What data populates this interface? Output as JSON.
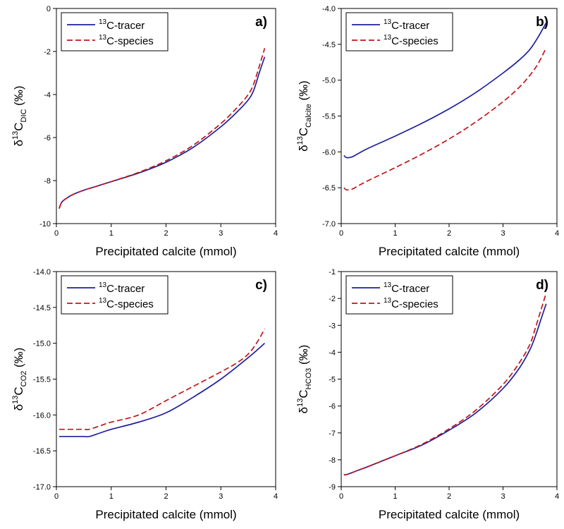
{
  "colors": {
    "tracer": "#1f1f9e",
    "species": "#c0161c"
  },
  "chart_data": [
    {
      "type": "line",
      "panel_label": "a)",
      "xlabel": "Precipitated calcite (mmol)",
      "ylabel": {
        "prefix": "δ",
        "sup": "13",
        "main": "C",
        "sub": "DIC",
        "suffix": "(‰)"
      },
      "xlim": [
        0,
        4
      ],
      "ylim": [
        -10,
        0
      ],
      "xticks": [
        0,
        1,
        2,
        3,
        4
      ],
      "yticks": [
        -10,
        -8,
        -6,
        -4,
        -2,
        0
      ],
      "legend": "top-left",
      "series": [
        {
          "name": "C-tracer",
          "name_sup": "13",
          "style": "solid",
          "x": [
            0.05,
            0.1,
            0.2,
            0.3,
            0.5,
            0.75,
            1.0,
            1.5,
            2.0,
            2.5,
            3.0,
            3.3,
            3.5,
            3.6,
            3.7,
            3.8
          ],
          "y": [
            -9.3,
            -9.0,
            -8.8,
            -8.65,
            -8.45,
            -8.25,
            -8.05,
            -7.65,
            -7.15,
            -6.45,
            -5.5,
            -4.8,
            -4.25,
            -3.8,
            -3.0,
            -2.25
          ]
        },
        {
          "name": "C-species",
          "name_sup": "13",
          "style": "dashed",
          "x": [
            0.05,
            0.1,
            0.2,
            0.3,
            0.5,
            0.75,
            1.0,
            1.5,
            2.0,
            2.5,
            3.0,
            3.3,
            3.5,
            3.6,
            3.7,
            3.8
          ],
          "y": [
            -9.3,
            -9.0,
            -8.8,
            -8.65,
            -8.45,
            -8.25,
            -8.05,
            -7.62,
            -7.08,
            -6.35,
            -5.35,
            -4.6,
            -4.0,
            -3.5,
            -2.7,
            -1.85
          ]
        }
      ]
    },
    {
      "type": "line",
      "panel_label": "b)",
      "xlabel": "Precipitated calcite (mmol)",
      "ylabel": {
        "prefix": "δ",
        "sup": "13",
        "main": "C",
        "sub": "Calcite",
        "suffix": "(‰)"
      },
      "xlim": [
        0,
        4
      ],
      "ylim": [
        -7.0,
        -4.0
      ],
      "xticks": [
        0,
        1,
        2,
        3,
        4
      ],
      "yticks": [
        -7.0,
        -6.5,
        -6.0,
        -5.5,
        -5.0,
        -4.5,
        -4.0
      ],
      "ytick_labels": [
        "-7.0",
        "-6.5",
        "-6.0",
        "-5.5",
        "-5.0",
        "-4.5",
        "-4.0"
      ],
      "legend": "top-left",
      "series": [
        {
          "name": "C-tracer",
          "name_sup": "13",
          "style": "solid",
          "x": [
            0.05,
            0.1,
            0.2,
            0.3,
            0.5,
            1.0,
            1.5,
            2.0,
            2.5,
            3.0,
            3.3,
            3.5,
            3.65,
            3.8
          ],
          "y": [
            -6.05,
            -6.08,
            -6.07,
            -6.03,
            -5.95,
            -5.78,
            -5.6,
            -5.4,
            -5.17,
            -4.9,
            -4.72,
            -4.57,
            -4.4,
            -4.2
          ]
        },
        {
          "name": "C-species",
          "name_sup": "13",
          "style": "dashed",
          "x": [
            0.05,
            0.1,
            0.2,
            0.3,
            0.5,
            1.0,
            1.5,
            2.0,
            2.5,
            3.0,
            3.3,
            3.5,
            3.65,
            3.8
          ],
          "y": [
            -6.5,
            -6.53,
            -6.52,
            -6.48,
            -6.4,
            -6.22,
            -6.03,
            -5.82,
            -5.58,
            -5.3,
            -5.1,
            -4.93,
            -4.77,
            -4.55
          ]
        }
      ]
    },
    {
      "type": "line",
      "panel_label": "c)",
      "xlabel": "Precipitated calcite (mmol)",
      "ylabel": {
        "prefix": "δ",
        "sup": "13",
        "main": "C",
        "sub": "CO2",
        "suffix": "(‰)"
      },
      "xlim": [
        0,
        4
      ],
      "ylim": [
        -17.0,
        -14.0
      ],
      "xticks": [
        0,
        1,
        2,
        3,
        4
      ],
      "yticks": [
        -17.0,
        -16.5,
        -16.0,
        -15.5,
        -15.0,
        -14.5,
        -14.0
      ],
      "ytick_labels": [
        "-17.0",
        "-16.5",
        "-16.0",
        "-15.5",
        "-15.0",
        "-14.5",
        "-14.0"
      ],
      "legend": "top-left",
      "series": [
        {
          "name": "C-tracer",
          "name_sup": "13",
          "style": "solid",
          "x": [
            0.05,
            0.3,
            0.5,
            0.6,
            0.8,
            1.0,
            1.5,
            2.0,
            2.5,
            3.0,
            3.5,
            3.8
          ],
          "y": [
            -16.3,
            -16.3,
            -16.3,
            -16.3,
            -16.25,
            -16.2,
            -16.1,
            -15.97,
            -15.75,
            -15.5,
            -15.2,
            -15.0
          ]
        },
        {
          "name": "C-species",
          "name_sup": "13",
          "style": "dashed",
          "x": [
            0.05,
            0.3,
            0.5,
            0.6,
            0.8,
            1.0,
            1.5,
            2.0,
            2.5,
            3.0,
            3.3,
            3.5,
            3.65,
            3.8
          ],
          "y": [
            -16.2,
            -16.2,
            -16.2,
            -16.2,
            -16.15,
            -16.1,
            -16.0,
            -15.8,
            -15.6,
            -15.4,
            -15.27,
            -15.15,
            -15.0,
            -14.8
          ]
        }
      ]
    },
    {
      "type": "line",
      "panel_label": "d)",
      "xlabel": "Precipitated calcite (mmol)",
      "ylabel": {
        "prefix": "δ",
        "sup": "13",
        "main": "C",
        "sub": "HCO3",
        "suffix": "(‰)"
      },
      "xlim": [
        0,
        4
      ],
      "ylim": [
        -9,
        -1
      ],
      "xticks": [
        0,
        1,
        2,
        3,
        4
      ],
      "yticks": [
        -9,
        -8,
        -7,
        -6,
        -5,
        -4,
        -3,
        -2,
        -1
      ],
      "legend": "top-left",
      "series": [
        {
          "name": "C-tracer",
          "name_sup": "13",
          "style": "solid",
          "x": [
            0.05,
            0.1,
            0.3,
            0.5,
            1.0,
            1.5,
            2.0,
            2.5,
            3.0,
            3.3,
            3.5,
            3.6,
            3.7,
            3.8
          ],
          "y": [
            -8.55,
            -8.55,
            -8.4,
            -8.25,
            -7.85,
            -7.45,
            -6.9,
            -6.25,
            -5.35,
            -4.6,
            -3.9,
            -3.4,
            -2.8,
            -2.2
          ]
        },
        {
          "name": "C-species",
          "name_sup": "13",
          "style": "dashed",
          "x": [
            0.05,
            0.1,
            0.3,
            0.5,
            1.0,
            1.5,
            2.0,
            2.5,
            3.0,
            3.3,
            3.5,
            3.6,
            3.7,
            3.8
          ],
          "y": [
            -8.55,
            -8.55,
            -8.4,
            -8.25,
            -7.85,
            -7.42,
            -6.85,
            -6.15,
            -5.2,
            -4.4,
            -3.7,
            -3.1,
            -2.45,
            -1.8
          ]
        }
      ]
    }
  ]
}
